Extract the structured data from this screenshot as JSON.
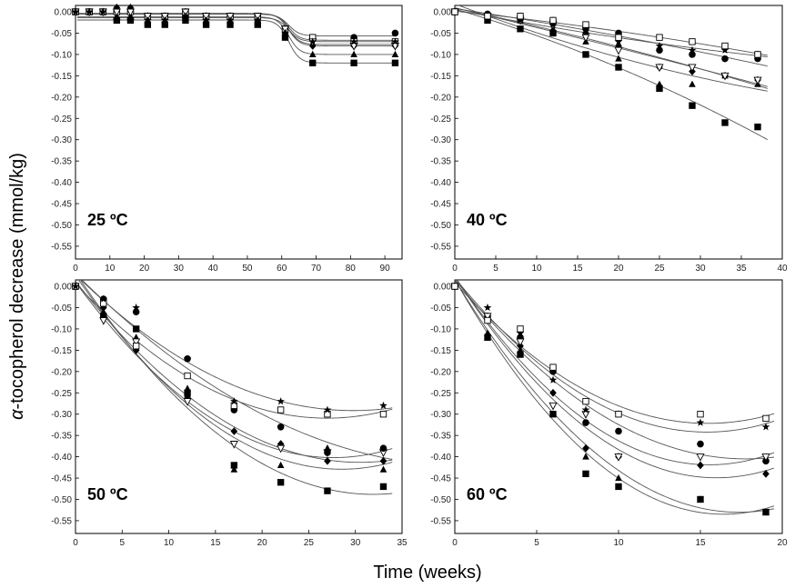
{
  "figure": {
    "ylabel": "α-tocopherol decrease (mmol/kg)",
    "ylabel_symbol": "α",
    "ylabel_rest": "-tocopherol decrease (mmol/kg)",
    "xlabel": "Time (weeks)"
  },
  "chart_data": [
    {
      "type": "scatter",
      "title": "25 ºC",
      "xlim": [
        0,
        95
      ],
      "ylim": [
        -0.58,
        0.015
      ],
      "xticks": [
        0,
        10,
        20,
        30,
        40,
        50,
        60,
        70,
        80,
        90
      ],
      "yticks": [
        0.0,
        -0.05,
        -0.1,
        -0.15,
        -0.2,
        -0.25,
        -0.3,
        -0.35,
        -0.4,
        -0.45,
        -0.5,
        -0.55
      ],
      "series": [
        {
          "name": "filled square",
          "marker": "square-filled",
          "x": [
            0,
            4,
            8,
            12,
            16,
            21,
            26,
            32,
            38,
            45,
            53,
            61,
            69,
            81,
            93
          ],
          "y": [
            0,
            0,
            0,
            -0.02,
            -0.02,
            -0.03,
            -0.03,
            -0.02,
            -0.03,
            -0.03,
            -0.03,
            -0.06,
            -0.12,
            -0.12,
            -0.12
          ]
        },
        {
          "name": "filled circle",
          "marker": "circle-filled",
          "x": [
            0,
            4,
            8,
            12,
            16,
            21,
            26,
            32,
            38,
            45,
            53,
            61,
            69,
            81,
            93
          ],
          "y": [
            0,
            0,
            0,
            0,
            0,
            -0.01,
            -0.01,
            -0.01,
            -0.01,
            -0.01,
            -0.01,
            -0.04,
            -0.06,
            -0.06,
            -0.05
          ]
        },
        {
          "name": "filled triangle",
          "marker": "triangle-filled",
          "x": [
            0,
            4,
            8,
            12,
            16,
            21,
            26,
            32,
            38,
            45,
            53,
            61,
            69,
            81,
            93
          ],
          "y": [
            0,
            0,
            0,
            -0.01,
            -0.01,
            -0.02,
            -0.02,
            -0.01,
            -0.02,
            -0.02,
            -0.02,
            -0.05,
            -0.1,
            -0.1,
            -0.1
          ]
        },
        {
          "name": "filled diamond",
          "marker": "diamond-filled",
          "x": [
            0,
            4,
            8,
            12,
            16,
            21,
            26,
            32,
            38,
            45,
            53,
            61,
            69,
            81,
            93
          ],
          "y": [
            0,
            0,
            0,
            0.01,
            0.01,
            -0.01,
            -0.01,
            0,
            -0.01,
            -0.01,
            -0.02,
            -0.05,
            -0.08,
            -0.08,
            -0.08
          ]
        },
        {
          "name": "open square",
          "marker": "square-open",
          "x": [
            0,
            4,
            8,
            12,
            16,
            21,
            26,
            32,
            38,
            45,
            53,
            61,
            69,
            81,
            93
          ],
          "y": [
            0,
            0,
            0,
            0,
            0,
            -0.01,
            -0.01,
            0,
            -0.01,
            -0.01,
            -0.01,
            -0.04,
            -0.06,
            -0.07,
            -0.07
          ]
        },
        {
          "name": "open triangle",
          "marker": "triangle-open",
          "x": [
            0,
            4,
            8,
            12,
            16,
            21,
            26,
            32,
            38,
            45,
            53,
            61,
            69,
            81,
            93
          ],
          "y": [
            0,
            0,
            0,
            0,
            0,
            -0.01,
            -0.01,
            0,
            -0.01,
            -0.01,
            -0.01,
            -0.04,
            -0.07,
            -0.08,
            -0.08
          ]
        },
        {
          "name": "star",
          "marker": "star",
          "x": [
            0,
            4,
            8,
            12,
            16,
            21,
            26,
            32,
            38,
            45,
            53,
            61,
            69,
            81,
            93
          ],
          "y": [
            0,
            0,
            0,
            -0.02,
            -0.02,
            -0.02,
            -0.02,
            -0.01,
            -0.02,
            -0.02,
            -0.02,
            -0.05,
            -0.07,
            -0.07,
            -0.07
          ]
        }
      ]
    },
    {
      "type": "scatter",
      "title": "40 ºC",
      "xlim": [
        0,
        40
      ],
      "ylim": [
        -0.58,
        0.015
      ],
      "xticks": [
        0,
        5,
        10,
        15,
        20,
        25,
        30,
        35,
        40
      ],
      "yticks": [
        0.0,
        -0.05,
        -0.1,
        -0.15,
        -0.2,
        -0.25,
        -0.3,
        -0.35,
        -0.4,
        -0.45,
        -0.5,
        -0.55
      ],
      "series": [
        {
          "name": "filled square",
          "marker": "square-filled",
          "x": [
            0,
            4,
            8,
            12,
            16,
            20,
            25,
            29,
            33,
            37
          ],
          "y": [
            0,
            -0.02,
            -0.04,
            -0.05,
            -0.1,
            -0.13,
            -0.18,
            -0.22,
            -0.26,
            -0.27
          ]
        },
        {
          "name": "filled triangle",
          "marker": "triangle-filled",
          "x": [
            0,
            4,
            8,
            12,
            16,
            20,
            25,
            29,
            33,
            37
          ],
          "y": [
            0,
            -0.01,
            -0.02,
            -0.04,
            -0.07,
            -0.11,
            -0.17,
            -0.17,
            -0.15,
            -0.17
          ]
        },
        {
          "name": "filled diamond",
          "marker": "diamond-filled",
          "x": [
            0,
            4,
            8,
            12,
            16,
            20,
            25,
            29,
            33,
            37
          ],
          "y": [
            0,
            -0.01,
            -0.02,
            -0.03,
            -0.05,
            -0.08,
            -0.13,
            -0.14,
            -0.15,
            -0.16
          ]
        },
        {
          "name": "open triangle",
          "marker": "triangle-open",
          "x": [
            0,
            4,
            8,
            12,
            16,
            20,
            25,
            29,
            33,
            37
          ],
          "y": [
            0,
            -0.01,
            -0.02,
            -0.03,
            -0.06,
            -0.09,
            -0.13,
            -0.13,
            -0.15,
            -0.16
          ]
        },
        {
          "name": "filled circle",
          "marker": "circle-filled",
          "x": [
            0,
            4,
            8,
            12,
            16,
            20,
            25,
            29,
            33,
            37
          ],
          "y": [
            0,
            -0.005,
            -0.01,
            -0.02,
            -0.04,
            -0.05,
            -0.09,
            -0.1,
            -0.11,
            -0.11
          ]
        },
        {
          "name": "star",
          "marker": "star",
          "x": [
            0,
            4,
            8,
            12,
            16,
            20,
            25,
            29,
            33,
            37
          ],
          "y": [
            0,
            -0.01,
            -0.02,
            -0.03,
            -0.04,
            -0.07,
            -0.08,
            -0.09,
            -0.09,
            -0.1
          ]
        },
        {
          "name": "open square",
          "marker": "square-open",
          "x": [
            0,
            4,
            8,
            12,
            16,
            20,
            25,
            29,
            33,
            37
          ],
          "y": [
            0,
            -0.01,
            -0.01,
            -0.02,
            -0.03,
            -0.06,
            -0.06,
            -0.07,
            -0.08,
            -0.1
          ]
        }
      ]
    },
    {
      "type": "scatter",
      "title": "50 ºC",
      "xlim": [
        0,
        35
      ],
      "ylim": [
        -0.58,
        0.015
      ],
      "xticks": [
        0,
        5,
        10,
        15,
        20,
        25,
        30,
        35
      ],
      "yticks": [
        0.0,
        -0.05,
        -0.1,
        -0.15,
        -0.2,
        -0.25,
        -0.3,
        -0.35,
        -0.4,
        -0.45,
        -0.5,
        -0.55
      ],
      "series": [
        {
          "name": "filled square",
          "marker": "square-filled",
          "x": [
            0,
            3,
            6.5,
            12,
            17,
            22,
            27,
            33
          ],
          "y": [
            0,
            -0.07,
            -0.1,
            -0.25,
            -0.42,
            -0.46,
            -0.48,
            -0.47
          ]
        },
        {
          "name": "filled triangle",
          "marker": "triangle-filled",
          "x": [
            0,
            3,
            6.5,
            12,
            17,
            22,
            27,
            33
          ],
          "y": [
            0,
            -0.06,
            -0.12,
            -0.24,
            -0.43,
            -0.42,
            -0.38,
            -0.43
          ]
        },
        {
          "name": "filled diamond",
          "marker": "diamond-filled",
          "x": [
            0,
            3,
            6.5,
            12,
            17,
            22,
            27,
            33
          ],
          "y": [
            0,
            -0.05,
            -0.15,
            -0.26,
            -0.34,
            -0.37,
            -0.41,
            -0.41
          ]
        },
        {
          "name": "open triangle",
          "marker": "triangle-open",
          "x": [
            0,
            3,
            6.5,
            12,
            17,
            22,
            27,
            33
          ],
          "y": [
            0,
            -0.08,
            -0.13,
            -0.27,
            -0.37,
            -0.38,
            -0.39,
            -0.39
          ]
        },
        {
          "name": "filled circle",
          "marker": "circle-filled",
          "x": [
            0,
            3,
            6.5,
            12,
            17,
            22,
            27,
            33
          ],
          "y": [
            0,
            -0.03,
            -0.06,
            -0.17,
            -0.29,
            -0.33,
            -0.39,
            -0.38
          ]
        },
        {
          "name": "open square",
          "marker": "square-open",
          "x": [
            0,
            3,
            6.5,
            12,
            17,
            22,
            27,
            33
          ],
          "y": [
            0,
            -0.04,
            -0.14,
            -0.21,
            -0.28,
            -0.29,
            -0.3,
            -0.3
          ]
        },
        {
          "name": "star",
          "marker": "star",
          "x": [
            0,
            3,
            6.5,
            12,
            17,
            22,
            27,
            33
          ],
          "y": [
            0,
            -0.03,
            -0.05,
            -0.17,
            -0.27,
            -0.27,
            -0.29,
            -0.28
          ]
        }
      ]
    },
    {
      "type": "scatter",
      "title": "60 ºC",
      "xlim": [
        0,
        20
      ],
      "ylim": [
        -0.58,
        0.015
      ],
      "xticks": [
        0,
        5,
        10,
        15,
        20
      ],
      "yticks": [
        0.0,
        -0.05,
        -0.1,
        -0.15,
        -0.2,
        -0.25,
        -0.3,
        -0.35,
        -0.4,
        -0.45,
        -0.5,
        -0.55
      ],
      "series": [
        {
          "name": "filled square",
          "marker": "square-filled",
          "x": [
            0,
            2,
            4,
            6,
            8,
            10,
            15,
            19
          ],
          "y": [
            0,
            -0.12,
            -0.16,
            -0.3,
            -0.44,
            -0.47,
            -0.5,
            -0.53
          ]
        },
        {
          "name": "filled triangle",
          "marker": "triangle-filled",
          "x": [
            0,
            2,
            4,
            6,
            8,
            10,
            15,
            19
          ],
          "y": [
            0,
            -0.11,
            -0.15,
            -0.3,
            -0.4,
            -0.45,
            -0.5,
            -0.53
          ]
        },
        {
          "name": "filled diamond",
          "marker": "diamond-filled",
          "x": [
            0,
            2,
            4,
            6,
            8,
            10,
            15,
            19
          ],
          "y": [
            0,
            -0.08,
            -0.14,
            -0.25,
            -0.38,
            -0.4,
            -0.42,
            -0.44
          ]
        },
        {
          "name": "filled circle",
          "marker": "circle-filled",
          "x": [
            0,
            2,
            4,
            6,
            8,
            10,
            15,
            19
          ],
          "y": [
            0,
            -0.07,
            -0.12,
            -0.2,
            -0.32,
            -0.34,
            -0.37,
            -0.41
          ]
        },
        {
          "name": "open triangle",
          "marker": "triangle-open",
          "x": [
            0,
            2,
            4,
            6,
            8,
            10,
            15,
            19
          ],
          "y": [
            0,
            -0.07,
            -0.13,
            -0.28,
            -0.3,
            -0.4,
            -0.4,
            -0.4
          ]
        },
        {
          "name": "star",
          "marker": "star",
          "x": [
            0,
            2,
            4,
            6,
            8,
            10,
            15,
            19
          ],
          "y": [
            0,
            -0.05,
            -0.11,
            -0.22,
            -0.29,
            -0.3,
            -0.32,
            -0.33
          ]
        },
        {
          "name": "open square",
          "marker": "square-open",
          "x": [
            0,
            2,
            4,
            6,
            8,
            10,
            15,
            19
          ],
          "y": [
            0,
            -0.08,
            -0.1,
            -0.19,
            -0.27,
            -0.3,
            -0.3,
            -0.31
          ]
        }
      ]
    }
  ]
}
